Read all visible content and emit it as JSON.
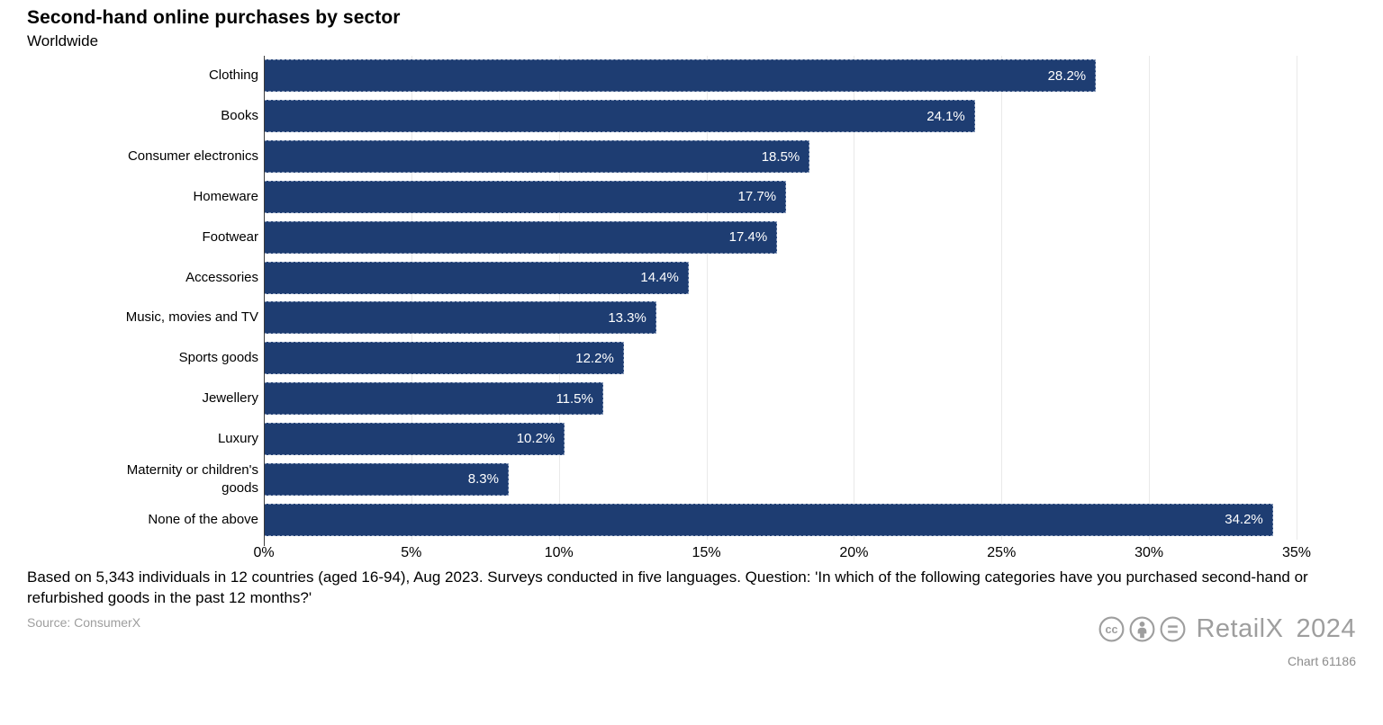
{
  "header": {
    "title": "Second-hand online purchases by sector",
    "subtitle": "Worldwide"
  },
  "chart_data": {
    "type": "bar",
    "orientation": "horizontal",
    "title": "Second-hand online purchases by sector",
    "subtitle": "Worldwide",
    "categories": [
      "Clothing",
      "Books",
      "Consumer electronics",
      "Homeware",
      "Footwear",
      "Accessories",
      "Music, movies and TV",
      "Sports goods",
      "Jewellery",
      "Luxury",
      "Maternity or children's goods",
      "None of the above"
    ],
    "values": [
      28.2,
      24.1,
      18.5,
      17.7,
      17.4,
      14.4,
      13.3,
      12.2,
      11.5,
      10.2,
      8.3,
      34.2
    ],
    "value_labels": [
      "28.2%",
      "24.1%",
      "18.5%",
      "17.7%",
      "17.4%",
      "14.4%",
      "13.3%",
      "12.2%",
      "11.5%",
      "10.2%",
      "8.3%",
      "34.2%"
    ],
    "xlabel": "",
    "ylabel": "",
    "xlim": [
      0,
      35
    ],
    "x_ticks": [
      {
        "value": 0,
        "label": "0%"
      },
      {
        "value": 5,
        "label": "5%"
      },
      {
        "value": 10,
        "label": "10%"
      },
      {
        "value": 15,
        "label": "15%"
      },
      {
        "value": 20,
        "label": "20%"
      },
      {
        "value": 25,
        "label": "25%"
      },
      {
        "value": 30,
        "label": "30%"
      },
      {
        "value": 35,
        "label": "35%"
      }
    ],
    "grid": "vertical",
    "legend": "none",
    "bar_color": "#1e3d72",
    "value_label_color": "#ffffff"
  },
  "footer": {
    "note": "Based on 5,343 individuals in 12 countries (aged 16-94), Aug 2023. Surveys conducted in five languages. Question: 'In which of the following categories have you purchased second-hand or refurbished goods in the past 12 months?'",
    "source": "Source: ConsumerX",
    "branding": {
      "icons": [
        "cc-icon",
        "attribution-icon",
        "no-derivatives-icon"
      ],
      "brand": "RetailX",
      "year": "2024",
      "chart_id": "Chart 61186"
    }
  }
}
